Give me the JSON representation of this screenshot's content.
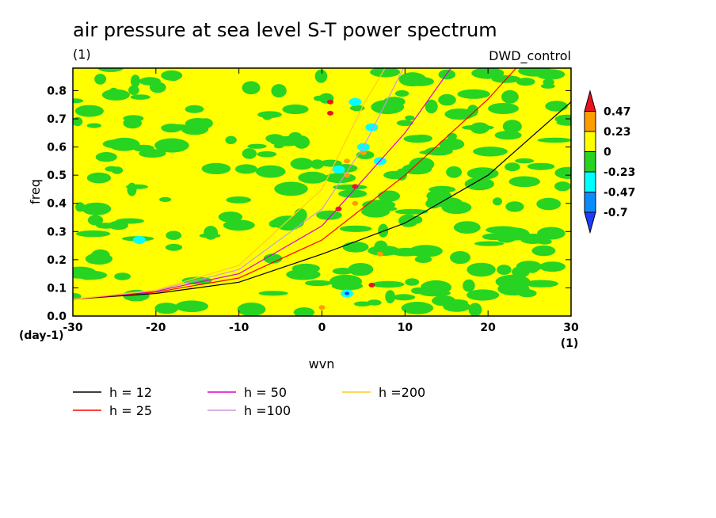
{
  "chart_data": {
    "type": "heatmap",
    "title": "air pressure at sea level S-T power spectrum",
    "subtitle_left": "(1)",
    "subtitle_right": "DWD_control",
    "xlabel": "wvn",
    "ylabel": "freq",
    "x_unit": "(1)",
    "y_unit": "(day-1)",
    "xlim": [
      -30,
      30
    ],
    "ylim": [
      0,
      0.88
    ],
    "x_ticks": [
      "-30",
      "-20",
      "-10",
      "0",
      "10",
      "20",
      "30"
    ],
    "x_tick_values": [
      -30,
      -20,
      -10,
      0,
      10,
      20,
      30
    ],
    "y_ticks": [
      "0.0",
      "0.1",
      "0.2",
      "0.3",
      "0.4",
      "0.5",
      "0.6",
      "0.7",
      "0.8"
    ],
    "y_tick_values": [
      0,
      0.1,
      0.2,
      0.3,
      0.4,
      0.5,
      0.6,
      0.7,
      0.8
    ],
    "colorbar": {
      "labels": [
        "0.47",
        "0.23",
        "0",
        "-0.23",
        "-0.47",
        "-0.7"
      ],
      "bins": [
        {
          "range": "> 0.47",
          "color": "#e8131f"
        },
        {
          "range": "0.23 to 0.47",
          "color": "#ff9c00"
        },
        {
          "range": "0 to 0.23",
          "color": "#ffff00"
        },
        {
          "range": "-0.23 to 0",
          "color": "#27d422"
        },
        {
          "range": "-0.47 to -0.23",
          "color": "#00ffff"
        },
        {
          "range": "-0.7 to -0.47",
          "color": "#0a8cff"
        },
        {
          "range": "< -0.7",
          "color": "#1e3cff"
        }
      ]
    },
    "series": [
      {
        "name": "h = 12",
        "color": "#000000",
        "points": [
          [
            -30,
            0.06
          ],
          [
            -20,
            0.08
          ],
          [
            -10,
            0.12
          ],
          [
            0,
            0.22
          ],
          [
            10,
            0.33
          ],
          [
            20,
            0.5
          ],
          [
            30,
            0.76
          ]
        ]
      },
      {
        "name": "h = 25",
        "color": "#ff0000",
        "points": [
          [
            -30,
            0.06
          ],
          [
            -20,
            0.085
          ],
          [
            -10,
            0.135
          ],
          [
            0,
            0.27
          ],
          [
            10,
            0.5
          ],
          [
            20,
            0.77
          ],
          [
            24,
            0.9
          ]
        ]
      },
      {
        "name": "h = 50",
        "color": "#dd00cc",
        "points": [
          [
            -30,
            0.06
          ],
          [
            -20,
            0.088
          ],
          [
            -10,
            0.15
          ],
          [
            0,
            0.32
          ],
          [
            10,
            0.65
          ],
          [
            16,
            0.9
          ]
        ]
      },
      {
        "name": "h =100",
        "color": "#cc99dd",
        "points": [
          [
            -30,
            0.06
          ],
          [
            -20,
            0.09
          ],
          [
            -10,
            0.165
          ],
          [
            0,
            0.38
          ],
          [
            5,
            0.6
          ],
          [
            10,
            0.89
          ]
        ]
      },
      {
        "name": "h =200",
        "color": "#ffcc22",
        "points": [
          [
            -30,
            0.06
          ],
          [
            -20,
            0.092
          ],
          [
            -10,
            0.18
          ],
          [
            0,
            0.45
          ],
          [
            5,
            0.75
          ],
          [
            8,
            0.9
          ]
        ]
      }
    ],
    "field_colors": {
      "yellow": "#ffff00",
      "green": "#27d422"
    },
    "grid": false
  }
}
